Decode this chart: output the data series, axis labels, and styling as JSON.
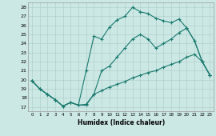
{
  "xlabel": "Humidex (Indice chaleur)",
  "bg_color": "#cce8e5",
  "grid_color": "#b0d0cc",
  "line_color": "#1a7a6e",
  "xlim": [
    -0.5,
    23.5
  ],
  "ylim": [
    16.5,
    28.5
  ],
  "xticks": [
    0,
    1,
    2,
    3,
    4,
    5,
    6,
    7,
    8,
    9,
    10,
    11,
    12,
    13,
    14,
    15,
    16,
    17,
    18,
    19,
    20,
    21,
    22,
    23
  ],
  "yticks": [
    17,
    18,
    19,
    20,
    21,
    22,
    23,
    24,
    25,
    26,
    27,
    28
  ],
  "line1_x": [
    0,
    1,
    2,
    3,
    4,
    5,
    6,
    7,
    8,
    9,
    10,
    11,
    12,
    13,
    14,
    15,
    16,
    17,
    18,
    19,
    20,
    21,
    22,
    23
  ],
  "line1_y": [
    19.9,
    19.0,
    18.4,
    17.8,
    17.1,
    17.5,
    17.2,
    21.0,
    24.8,
    24.5,
    25.8,
    26.6,
    27.0,
    28.0,
    27.5,
    27.3,
    26.8,
    26.5,
    26.3,
    26.7,
    25.7,
    24.3,
    22.0,
    20.5
  ],
  "line2_x": [
    0,
    1,
    2,
    3,
    4,
    5,
    6,
    7,
    8,
    9,
    10,
    11,
    12,
    13,
    14,
    15,
    16,
    17,
    18,
    19,
    20,
    21,
    22,
    23
  ],
  "line2_y": [
    19.9,
    19.0,
    18.4,
    17.8,
    17.1,
    17.5,
    17.2,
    17.2,
    18.4,
    21.0,
    21.5,
    22.5,
    23.5,
    24.5,
    25.0,
    24.5,
    23.5,
    24.0,
    24.5,
    25.2,
    25.7,
    24.3,
    22.0,
    20.5
  ],
  "line3_x": [
    0,
    1,
    2,
    3,
    4,
    5,
    6,
    7,
    8,
    9,
    10,
    11,
    12,
    13,
    14,
    15,
    16,
    17,
    18,
    19,
    20,
    21,
    22,
    23
  ],
  "line3_y": [
    19.9,
    19.0,
    18.4,
    17.8,
    17.1,
    17.5,
    17.2,
    17.3,
    18.4,
    18.8,
    19.2,
    19.5,
    19.8,
    20.2,
    20.5,
    20.8,
    21.0,
    21.4,
    21.7,
    22.0,
    22.5,
    22.8,
    22.0,
    20.5
  ]
}
